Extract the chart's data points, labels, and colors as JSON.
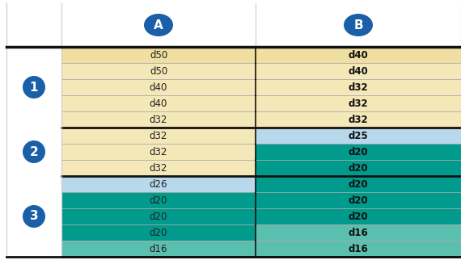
{
  "col_headers": [
    "A",
    "B"
  ],
  "groups": [
    {
      "label": "1",
      "rows": [
        {
          "A": "d50",
          "B": "d40",
          "A_color": "#f0dfa0",
          "B_color": "#f0dfa0"
        },
        {
          "A": "d50",
          "B": "d40",
          "A_color": "#f5e8b8",
          "B_color": "#f5e8b8"
        },
        {
          "A": "d40",
          "B": "d32",
          "A_color": "#f5e8b8",
          "B_color": "#f5e8b8"
        },
        {
          "A": "d40",
          "B": "d32",
          "A_color": "#f5e8b8",
          "B_color": "#f5e8b8"
        },
        {
          "A": "d32",
          "B": "d32",
          "A_color": "#f5e8b8",
          "B_color": "#f5e8b8"
        }
      ]
    },
    {
      "label": "2",
      "rows": [
        {
          "A": "d32",
          "B": "d25",
          "A_color": "#f5e8b8",
          "B_color": "#b8d8ec"
        },
        {
          "A": "d32",
          "B": "d20",
          "A_color": "#f5e8b8",
          "B_color": "#009b8d"
        },
        {
          "A": "d32",
          "B": "d20",
          "A_color": "#f5e8b8",
          "B_color": "#009b8d"
        }
      ]
    },
    {
      "label": "3",
      "rows": [
        {
          "A": "d26",
          "B": "d20",
          "A_color": "#b8d8ec",
          "B_color": "#009b8d"
        },
        {
          "A": "d20",
          "B": "d20",
          "A_color": "#009b8d",
          "B_color": "#009b8d"
        },
        {
          "A": "d20",
          "B": "d20",
          "A_color": "#009b8d",
          "B_color": "#009b8d"
        },
        {
          "A": "d20",
          "B": "d16",
          "A_color": "#009b8d",
          "B_color": "#5bbfb0"
        },
        {
          "A": "d16",
          "B": "d16",
          "A_color": "#5bbfb0",
          "B_color": "#5bbfb0"
        }
      ]
    }
  ],
  "header_circle_color": "#1a5fa8",
  "label_circle_color": "#1a5fa8",
  "bg_color": "#ffffff",
  "border_color": "#111111",
  "thin_line_color": "#aaaaaa",
  "figsize": [
    5.7,
    3.22
  ],
  "dpi": 100
}
